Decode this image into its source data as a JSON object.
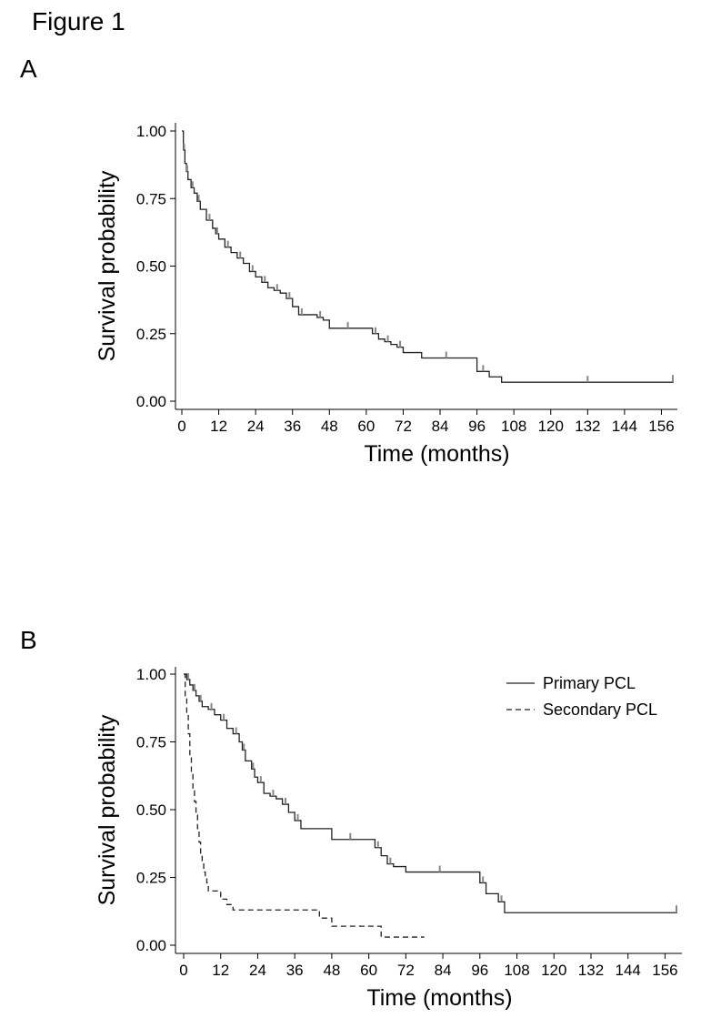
{
  "figure_title": "Figure 1",
  "chart_data": [
    {
      "panel": "A",
      "type": "line",
      "step": true,
      "xlabel": "Time (months)",
      "ylabel": "Survival probability",
      "xlim": [
        0,
        160
      ],
      "ylim": [
        0,
        1
      ],
      "xticks": [
        0,
        12,
        24,
        36,
        48,
        60,
        72,
        84,
        96,
        108,
        120,
        132,
        144,
        156
      ],
      "yticks": [
        0.0,
        0.25,
        0.5,
        0.75,
        1.0
      ],
      "ytick_labels": [
        "0.00",
        "0.25",
        "0.50",
        "0.75",
        "1.00"
      ],
      "series": [
        {
          "style": "solid",
          "x": [
            0,
            0.5,
            1,
            1.5,
            2,
            3,
            4,
            5,
            6,
            8,
            10,
            11,
            12,
            14,
            16,
            18,
            20,
            22,
            24,
            26,
            28,
            30,
            32,
            34,
            36,
            38,
            40,
            44,
            46,
            48,
            60,
            62,
            64,
            66,
            68,
            70,
            72,
            78,
            94,
            96,
            100,
            104,
            160
          ],
          "y": [
            1.0,
            0.93,
            0.88,
            0.85,
            0.82,
            0.79,
            0.77,
            0.74,
            0.71,
            0.67,
            0.64,
            0.62,
            0.6,
            0.57,
            0.55,
            0.53,
            0.51,
            0.48,
            0.46,
            0.44,
            0.42,
            0.41,
            0.4,
            0.38,
            0.35,
            0.32,
            0.32,
            0.31,
            0.3,
            0.27,
            0.27,
            0.25,
            0.23,
            0.22,
            0.21,
            0.2,
            0.18,
            0.16,
            0.16,
            0.11,
            0.09,
            0.07,
            0.07
          ]
        }
      ]
    },
    {
      "panel": "B",
      "type": "line",
      "step": true,
      "xlabel": "Time (months)",
      "ylabel": "Survival probability",
      "xlim": [
        0,
        160
      ],
      "ylim": [
        0,
        1
      ],
      "xticks": [
        0,
        12,
        24,
        36,
        48,
        60,
        72,
        84,
        96,
        108,
        120,
        132,
        144,
        156
      ],
      "yticks": [
        0.0,
        0.25,
        0.5,
        0.75,
        1.0
      ],
      "ytick_labels": [
        "0.00",
        "0.25",
        "0.50",
        "0.75",
        "1.00"
      ],
      "legend_position": "top-right",
      "series": [
        {
          "name": "Primary PCL",
          "style": "solid",
          "x": [
            0,
            1,
            2,
            3,
            4,
            5,
            6,
            8,
            10,
            12,
            14,
            16,
            18,
            19,
            20,
            22,
            23,
            24,
            26,
            28,
            30,
            32,
            34,
            36,
            38,
            48,
            60,
            62,
            64,
            66,
            68,
            72,
            94,
            96,
            98,
            102,
            104,
            160
          ],
          "y": [
            1.0,
            0.98,
            0.96,
            0.94,
            0.92,
            0.9,
            0.88,
            0.87,
            0.85,
            0.83,
            0.8,
            0.78,
            0.75,
            0.72,
            0.68,
            0.65,
            0.62,
            0.6,
            0.56,
            0.55,
            0.54,
            0.52,
            0.49,
            0.46,
            0.43,
            0.39,
            0.39,
            0.36,
            0.33,
            0.3,
            0.29,
            0.27,
            0.27,
            0.23,
            0.19,
            0.16,
            0.12,
            0.12
          ]
        },
        {
          "name": "Secondary PCL",
          "style": "dashed",
          "x": [
            0,
            0.5,
            1,
            1.5,
            2,
            2.5,
            3,
            3.5,
            4,
            4.5,
            5,
            5.5,
            6,
            6.5,
            7,
            7.5,
            8,
            10,
            12,
            14,
            16,
            40,
            44,
            48,
            64,
            78
          ],
          "y": [
            1.0,
            0.92,
            0.85,
            0.78,
            0.7,
            0.63,
            0.57,
            0.53,
            0.48,
            0.43,
            0.38,
            0.34,
            0.3,
            0.27,
            0.25,
            0.23,
            0.2,
            0.2,
            0.17,
            0.15,
            0.13,
            0.13,
            0.1,
            0.07,
            0.03,
            0.03
          ]
        }
      ]
    }
  ]
}
